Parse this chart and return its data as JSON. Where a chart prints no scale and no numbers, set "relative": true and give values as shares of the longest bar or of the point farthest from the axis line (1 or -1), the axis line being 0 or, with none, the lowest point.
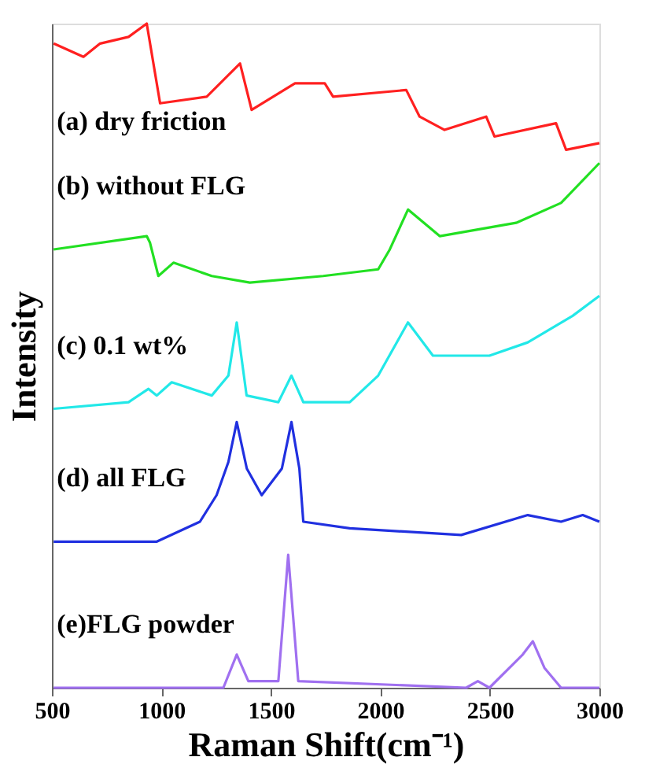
{
  "chart_data": {
    "type": "line",
    "relative": true,
    "xlabel": "Raman Shift(cm⁻¹)",
    "ylabel": "Intensity",
    "xlim": [
      500,
      3000
    ],
    "xticks": [
      500,
      1000,
      1500,
      2000,
      2500,
      3000
    ],
    "legend": false,
    "grid": false,
    "marker": "none",
    "line_style": "solid",
    "tick_labels": "x",
    "series": [
      {
        "name": "(a) dry friction",
        "color": "#ff2020",
        "x": [
          508,
          644,
          720,
          850,
          933,
          994,
          1207,
          1359,
          1412,
          1610,
          1746,
          1784,
          2118,
          2179,
          2293,
          2483,
          2521,
          2802,
          2848,
          3000
        ],
        "values": [
          0.97,
          0.95,
          0.97,
          0.98,
          1.0,
          0.88,
          0.89,
          0.94,
          0.87,
          0.91,
          0.91,
          0.89,
          0.9,
          0.86,
          0.84,
          0.86,
          0.83,
          0.85,
          0.81,
          0.82
        ]
      },
      {
        "name": "(b) without FLG",
        "color": "#22e022",
        "x": [
          508,
          933,
          948,
          986,
          1055,
          1230,
          1404,
          1739,
          1990,
          2043,
          2126,
          2271,
          2620,
          2825,
          3000
        ],
        "values": [
          0.66,
          0.68,
          0.67,
          0.62,
          0.64,
          0.62,
          0.61,
          0.62,
          0.63,
          0.66,
          0.72,
          0.68,
          0.7,
          0.73,
          0.79
        ]
      },
      {
        "name": "(c) 0.1 wt%",
        "color": "#22e8e8",
        "x": [
          508,
          850,
          941,
          979,
          1047,
          1230,
          1306,
          1344,
          1389,
          1534,
          1594,
          1648,
          1860,
          1990,
          2126,
          2240,
          2498,
          2673,
          2878,
          3000
        ],
        "values": [
          0.42,
          0.43,
          0.45,
          0.44,
          0.46,
          0.44,
          0.47,
          0.55,
          0.44,
          0.43,
          0.47,
          0.43,
          0.43,
          0.47,
          0.55,
          0.5,
          0.5,
          0.52,
          0.56,
          0.59
        ]
      },
      {
        "name": "(d) all FLG",
        "color": "#2030e0",
        "x": [
          508,
          979,
          1176,
          1252,
          1306,
          1344,
          1390,
          1458,
          1550,
          1594,
          1630,
          1648,
          1860,
          2369,
          2673,
          2825,
          2924,
          3000
        ],
        "values": [
          0.22,
          0.22,
          0.25,
          0.29,
          0.34,
          0.4,
          0.33,
          0.29,
          0.33,
          0.4,
          0.33,
          0.25,
          0.24,
          0.23,
          0.26,
          0.25,
          0.26,
          0.25
        ]
      },
      {
        "name": "(e)FLG powder",
        "color": "#a070f0",
        "x": [
          508,
          1283,
          1344,
          1397,
          1534,
          1579,
          1625,
          2392,
          2445,
          2498,
          2650,
          2696,
          2749,
          2825,
          3000
        ],
        "values": [
          0.0,
          0.0,
          0.05,
          0.01,
          0.01,
          0.2,
          0.01,
          0.0,
          0.01,
          0.0,
          0.05,
          0.07,
          0.03,
          0.0,
          0.0
        ]
      }
    ]
  }
}
